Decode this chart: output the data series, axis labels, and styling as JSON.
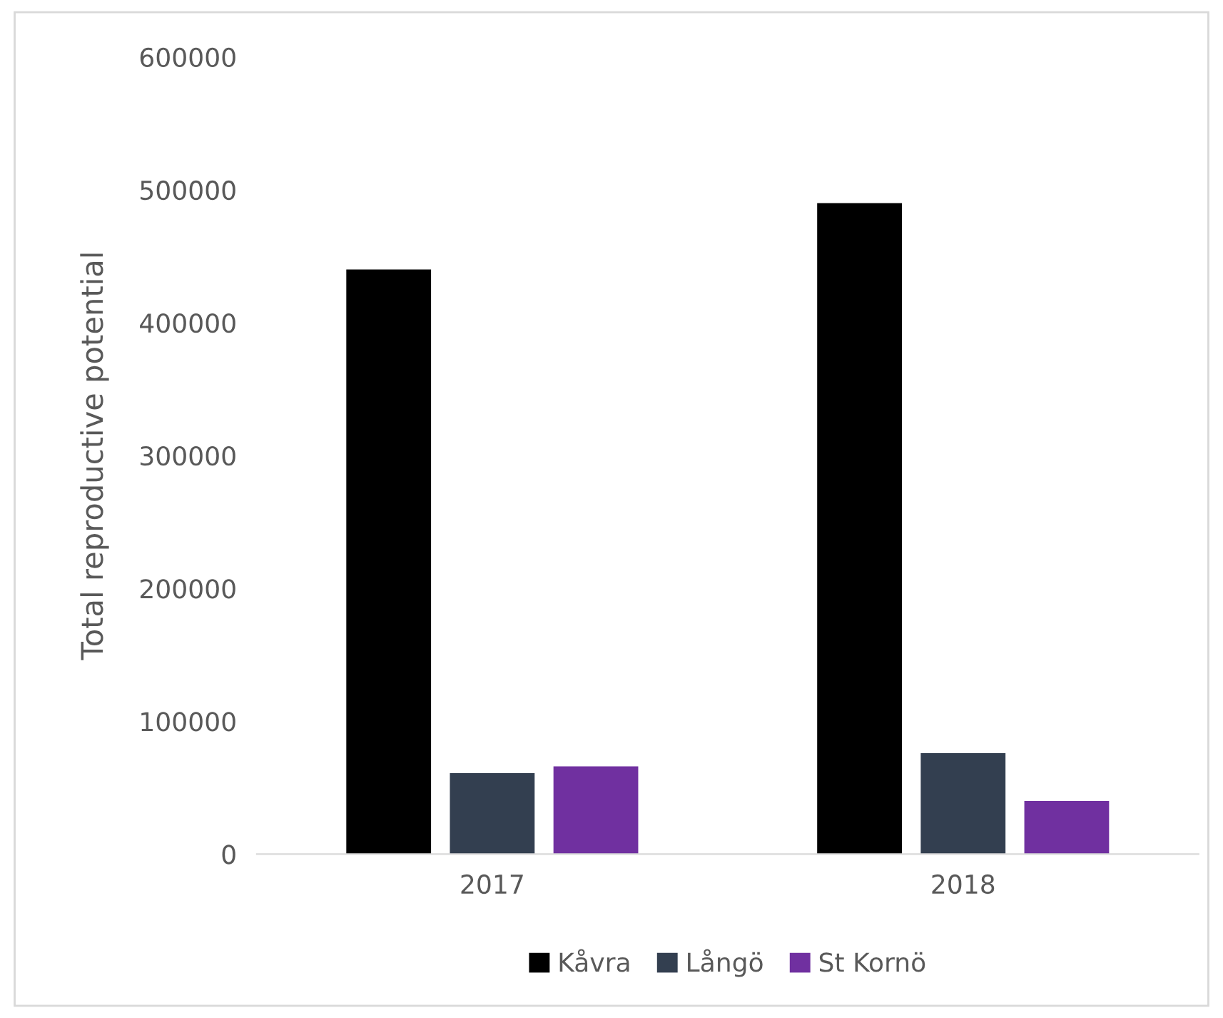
{
  "chart_data": {
    "type": "bar",
    "ylabel": "Total reproductive potential",
    "categories": [
      "2017",
      "2018"
    ],
    "series": [
      {
        "name": "Kåvra",
        "color": "#000000",
        "values": [
          440000,
          490000
        ]
      },
      {
        "name": "Långö",
        "color": "#333f50",
        "values": [
          61000,
          76000
        ]
      },
      {
        "name": "St Kornö",
        "color": "#7030a0",
        "values": [
          66000,
          40000
        ]
      }
    ],
    "ylim": [
      0,
      600000
    ],
    "yticks": [
      0,
      100000,
      200000,
      300000,
      400000,
      500000,
      600000
    ],
    "grid": false,
    "legend": "bottom"
  }
}
